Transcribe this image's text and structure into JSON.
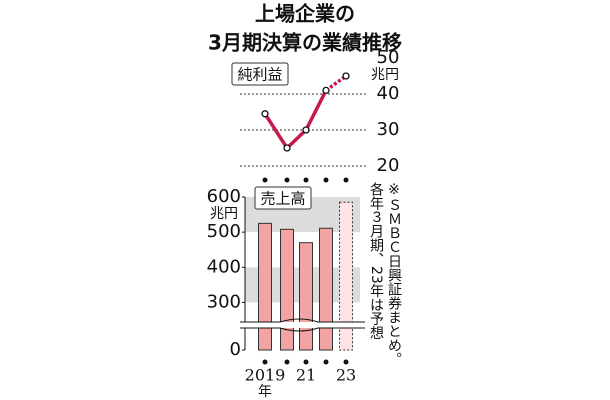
{
  "title": [
    "上場企業の",
    "3月期決算の業績推移"
  ],
  "note": [
    "※ＳＭＢＣ日興証券まとめ。",
    "各年３月期、23年は予想"
  ],
  "chart_data": [
    {
      "type": "line",
      "label": "純利益",
      "y_unit": "兆円",
      "series": [
        {
          "name": "純利益",
          "color": "#c8194b",
          "values": [
            34.5,
            25,
            30,
            41,
            45
          ]
        }
      ],
      "forecast_index": 4,
      "ylim": [
        20,
        50
      ],
      "yticks": [
        20,
        30,
        40,
        50
      ],
      "grid": true,
      "axis_side": "right"
    },
    {
      "type": "bar",
      "label": "売上高",
      "y_unit": "兆円",
      "categories": [
        "2019",
        null,
        "21",
        null,
        "23"
      ],
      "x_unit": "年",
      "series": [
        {
          "name": "売上高",
          "color": "#f2a3a3",
          "values": [
            525,
            508,
            470,
            511,
            585
          ]
        }
      ],
      "forecast_index": 4,
      "forecast_color": "#fde3e3",
      "ylim": [
        0,
        600
      ],
      "yticks": [
        0,
        300,
        400,
        500,
        600
      ],
      "axis_break": [
        0,
        250
      ],
      "shaded_bands": true,
      "axis_side": "left"
    }
  ]
}
